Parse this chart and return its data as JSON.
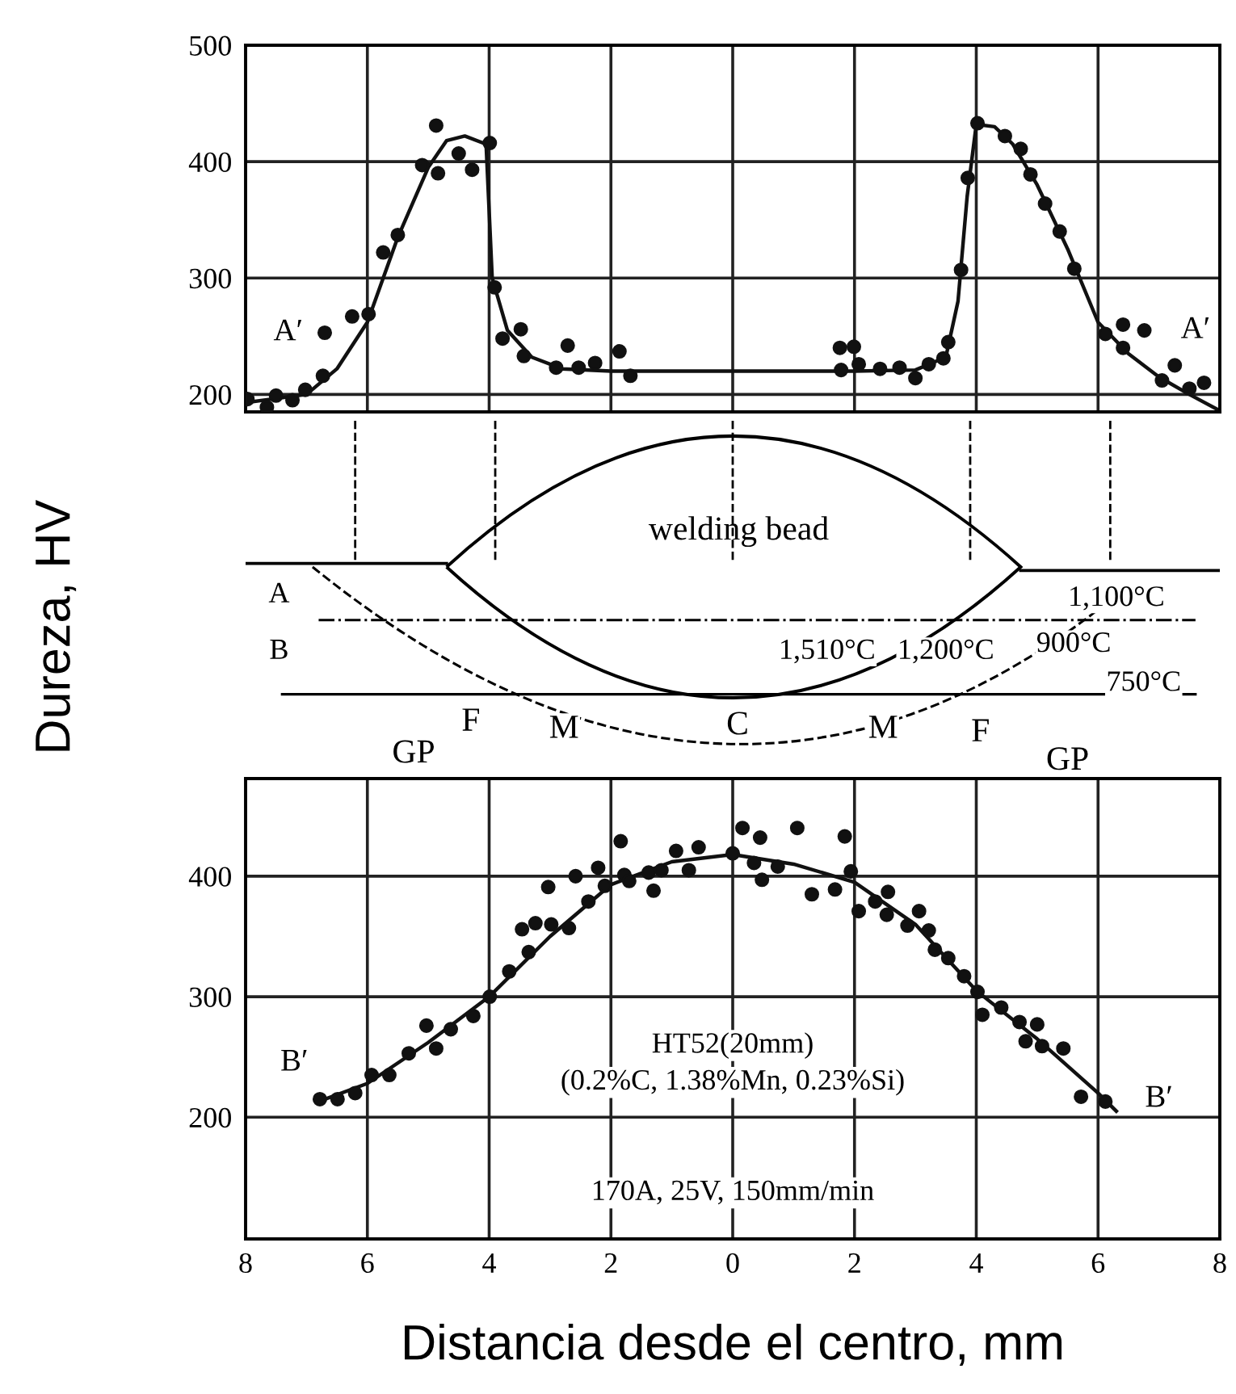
{
  "chart_data": [
    {
      "type": "scatter",
      "xlim": [
        -8,
        8
      ],
      "xticks": [
        {
          "value": -8,
          "label": null
        },
        {
          "value": -6,
          "label": null
        },
        {
          "value": -4,
          "label": null
        },
        {
          "value": -2,
          "label": null
        },
        {
          "value": 0,
          "label": null
        },
        {
          "value": 2,
          "label": null
        },
        {
          "value": 4,
          "label": null
        },
        {
          "value": 6,
          "label": null
        },
        {
          "value": 8,
          "label": null
        }
      ],
      "ylim": [
        185,
        500
      ],
      "yticks": [
        200,
        300,
        400,
        500
      ],
      "grid": true,
      "tick_labels": "y",
      "annotations": [
        "A′",
        "A′"
      ],
      "series": [
        {
          "type": "scatter",
          "marker": "circle",
          "color": "#111111",
          "x": [
            -7.97,
            -7.65,
            -7.5,
            -7.23,
            -7.02,
            -6.73,
            -6.7,
            -6.25,
            -5.98,
            -5.74,
            -5.5,
            -5.1,
            -4.84,
            -4.87,
            -4.5,
            -4.28,
            -3.99,
            -3.91,
            -3.78,
            -3.48,
            -3.43,
            -2.9,
            -2.71,
            -2.53,
            -2.26,
            -1.86,
            -1.68,
            1.76,
            1.99,
            1.78,
            2.07,
            2.42,
            2.74,
            3.0,
            3.22,
            3.46,
            3.54,
            3.75,
            3.86,
            4.02,
            4.47,
            4.73,
            4.89,
            5.13,
            5.37,
            5.61,
            6.12,
            6.41,
            6.41,
            6.76,
            7.26,
            7.05,
            7.5,
            7.74
          ],
          "values": [
            196,
            189,
            199,
            195,
            204,
            216,
            253,
            267,
            269,
            322,
            337,
            397,
            390,
            431,
            407,
            393,
            416,
            292,
            248,
            256,
            233,
            223,
            242,
            223,
            227,
            237,
            216,
            240,
            241,
            221,
            226,
            222,
            223,
            214,
            226,
            231,
            245,
            307,
            386,
            433,
            422,
            411,
            389,
            364,
            340,
            308,
            252,
            260,
            240,
            255,
            225,
            212,
            205,
            210
          ]
        },
        {
          "type": "line",
          "color": "#111111",
          "line_style": "solid",
          "x": [
            -8,
            -7,
            -6.5,
            -6,
            -5.5,
            -5,
            -4.7,
            -4.4,
            -4.05,
            -3.95,
            -3.7,
            -3.3,
            -2.8,
            -2,
            0,
            2,
            3,
            3.5,
            3.7,
            3.85,
            4.0,
            4.3,
            4.6,
            5.0,
            5.5,
            6,
            6.5,
            7,
            7.5,
            8
          ],
          "values": [
            193,
            200,
            222,
            262,
            335,
            395,
            418,
            422,
            415,
            300,
            255,
            232,
            222,
            220,
            220,
            220,
            221,
            232,
            280,
            370,
            432,
            430,
            415,
            380,
            325,
            262,
            235,
            215,
            200,
            186
          ]
        }
      ]
    },
    {
      "type": "other",
      "annotations": [
        "welding bead",
        "A",
        "B",
        "1,510°C",
        "1,200°C",
        "1,100°C",
        "900°C",
        "750°C",
        "GP",
        "F",
        "M",
        "C",
        "M",
        "F",
        "GP"
      ]
    },
    {
      "type": "scatter",
      "xlim": [
        -8,
        8
      ],
      "xticks": [
        {
          "value": -8,
          "label": "8"
        },
        {
          "value": -6,
          "label": "6"
        },
        {
          "value": -4,
          "label": "4"
        },
        {
          "value": -2,
          "label": "2"
        },
        0,
        2,
        4,
        6,
        8
      ],
      "ylim": [
        99,
        481
      ],
      "yticks": [
        200,
        300,
        400
      ],
      "grid": true,
      "xlabel": "Distancia desde el centro, mm",
      "ylabel": "Dureza, HV",
      "annotations": [
        "B′",
        "B′",
        "HT52(20mm)",
        "(0.2%C, 1.38%Mn, 0.23%Si)",
        "170A, 25V, 150mm/min"
      ],
      "series": [
        {
          "type": "scatter",
          "marker": "circle",
          "color": "#111111",
          "x": [
            -6.78,
            -6.49,
            -6.2,
            -5.93,
            -5.64,
            -5.32,
            -5.03,
            -4.87,
            -4.63,
            -4.26,
            -3.99,
            -3.67,
            -3.35,
            -3.46,
            -3.24,
            -2.98,
            -2.69,
            -3.03,
            -2.58,
            -2.37,
            -2.21,
            -2.1,
            -1.84,
            -1.78,
            -1.7,
            -1.38,
            -1.3,
            -1.17,
            -0.93,
            -0.72,
            -0.56,
            0.0,
            0.16,
            0.45,
            0.35,
            0.48,
            0.74,
            1.06,
            1.3,
            1.68,
            1.84,
            1.94,
            2.07,
            2.34,
            2.55,
            2.53,
            2.87,
            3.06,
            3.22,
            3.32,
            3.54,
            3.8,
            4.02,
            4.1,
            4.41,
            4.71,
            5.0,
            4.81,
            5.08,
            5.43,
            5.72,
            6.12
          ],
          "values": [
            215,
            215,
            220,
            235,
            235,
            253,
            276,
            257,
            273,
            284,
            300,
            321,
            337,
            356,
            361,
            360,
            357,
            391,
            400,
            379,
            407,
            392,
            429,
            401,
            396,
            403,
            388,
            405,
            421,
            405,
            424,
            419,
            440,
            432,
            411,
            397,
            408,
            440,
            385,
            389,
            433,
            404,
            371,
            379,
            387,
            368,
            359,
            371,
            355,
            339,
            332,
            317,
            304,
            285,
            291,
            279,
            277,
            263,
            259,
            257,
            217,
            213
          ]
        },
        {
          "type": "line",
          "color": "#111111",
          "line_style": "solid",
          "x": [
            -6.8,
            -6,
            -5,
            -4,
            -3,
            -2,
            -1,
            0,
            1,
            2,
            3,
            4,
            5,
            6,
            6.3
          ],
          "values": [
            213,
            228,
            262,
            300,
            350,
            393,
            412,
            418,
            410,
            395,
            360,
            305,
            265,
            220,
            205
          ]
        }
      ]
    }
  ]
}
